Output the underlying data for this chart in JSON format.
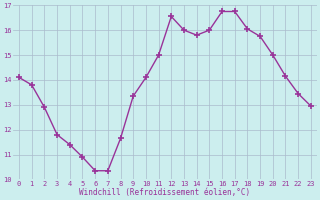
{
  "x": [
    0,
    1,
    2,
    3,
    4,
    5,
    6,
    7,
    8,
    9,
    10,
    11,
    12,
    13,
    14,
    15,
    16,
    17,
    18,
    19,
    20,
    21,
    22,
    23
  ],
  "y": [
    14.1,
    13.8,
    12.9,
    11.8,
    11.4,
    10.9,
    10.35,
    10.35,
    11.65,
    13.35,
    14.1,
    15.0,
    16.55,
    16.0,
    15.8,
    16.0,
    16.75,
    16.75,
    16.05,
    15.75,
    15.0,
    14.15,
    13.45,
    12.95
  ],
  "ylim": [
    10,
    17
  ],
  "xlim": [
    -0.5,
    23.5
  ],
  "yticks": [
    10,
    11,
    12,
    13,
    14,
    15,
    16,
    17
  ],
  "xticks": [
    0,
    1,
    2,
    3,
    4,
    5,
    6,
    7,
    8,
    9,
    10,
    11,
    12,
    13,
    14,
    15,
    16,
    17,
    18,
    19,
    20,
    21,
    22,
    23
  ],
  "line_color": "#993399",
  "marker": "+",
  "marker_size": 4,
  "line_width": 1.0,
  "bg_color": "#cceeee",
  "grid_color": "#aabbcc",
  "xlabel": "Windchill (Refroidissement éolien,°C)",
  "xlabel_color": "#993399",
  "tick_color": "#993399",
  "label_fontsize": 5.5,
  "tick_fontsize": 5.0
}
